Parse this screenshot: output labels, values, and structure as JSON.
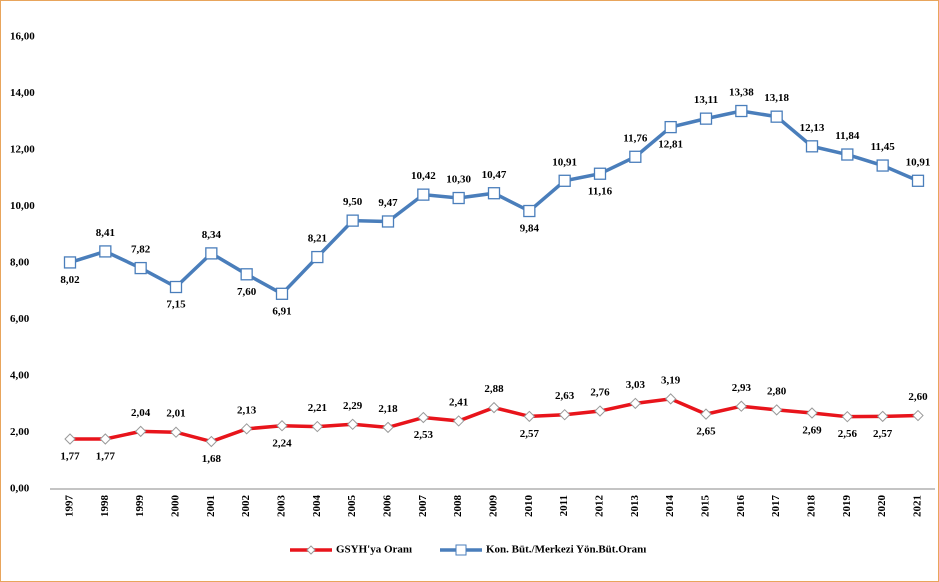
{
  "chart_data": {
    "type": "line",
    "categories": [
      "1997",
      "1998",
      "1999",
      "2000",
      "2001",
      "2002",
      "2003",
      "2004",
      "2005",
      "2006",
      "2007",
      "2008",
      "2009",
      "2010",
      "2011",
      "2012",
      "2013",
      "2014",
      "2015",
      "2016",
      "2017",
      "2018",
      "2019",
      "2020",
      "2021"
    ],
    "series": [
      {
        "name": "GSYH'ya Oranı",
        "color": "#e8141b",
        "marker": "diamond",
        "values": [
          1.77,
          1.77,
          2.04,
          2.01,
          1.68,
          2.13,
          2.24,
          2.21,
          2.29,
          2.18,
          2.53,
          2.41,
          2.88,
          2.57,
          2.63,
          2.76,
          3.03,
          3.19,
          2.65,
          2.93,
          2.8,
          2.69,
          2.56,
          2.57,
          2.6
        ],
        "value_labels": [
          "1,77",
          "1,77",
          "2,04",
          "2,01",
          "1,68",
          "2,13",
          "2,24",
          "2,21",
          "2,29",
          "2,18",
          "2,53",
          "2,41",
          "2,88",
          "2,57",
          "2,63",
          "2,76",
          "3,03",
          "3,19",
          "2,65",
          "2,93",
          "2,80",
          "2,69",
          "2,56",
          "2,57",
          "2,60"
        ]
      },
      {
        "name": "Kon. Büt./Merkezi Yön.Büt.Oranı",
        "color": "#4a7ebb",
        "marker": "square",
        "values": [
          8.02,
          8.41,
          7.82,
          7.15,
          8.34,
          7.6,
          6.91,
          8.21,
          9.5,
          9.47,
          10.42,
          10.3,
          10.47,
          9.84,
          10.91,
          11.16,
          11.76,
          12.81,
          13.11,
          13.38,
          13.18,
          12.13,
          11.84,
          11.45,
          10.91
        ],
        "value_labels": [
          "8,02",
          "8,41",
          "7,82",
          "7,15",
          "8,34",
          "7,60",
          "6,91",
          "8,21",
          "9,50",
          "9,47",
          "10,42",
          "10,30",
          "10,47",
          "9,84",
          "10,91",
          "11,16",
          "11,76",
          "12,81",
          "13,11",
          "13,38",
          "13,18",
          "12,13",
          "11,84",
          "11,45",
          "10,91"
        ]
      }
    ],
    "ylim": [
      0,
      16
    ],
    "yticks": [
      {
        "value": 0,
        "label": "0,00"
      },
      {
        "value": 2,
        "label": "2,00"
      },
      {
        "value": 4,
        "label": "4,00"
      },
      {
        "value": 6,
        "label": "6,00"
      },
      {
        "value": 8,
        "label": "8,00"
      },
      {
        "value": 10,
        "label": "10,00"
      },
      {
        "value": 12,
        "label": "12,00"
      },
      {
        "value": 14,
        "label": "14,00"
      },
      {
        "value": 16,
        "label": "16,00"
      }
    ],
    "legend": "bottom"
  }
}
